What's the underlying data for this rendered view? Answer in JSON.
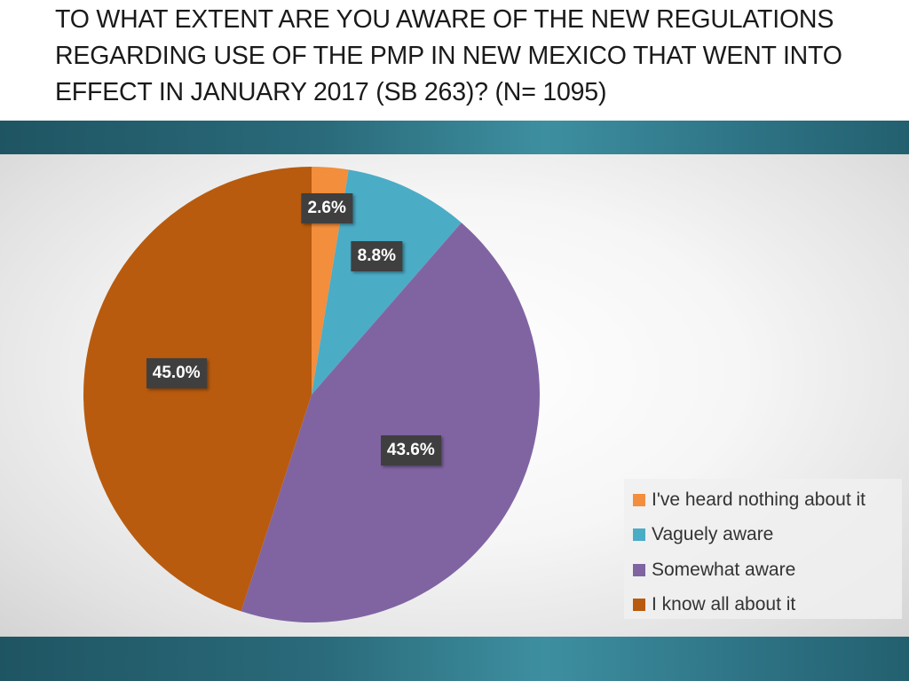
{
  "slide": {
    "title": "TO WHAT EXTENT ARE YOU AWARE OF THE NEW REGULATIONS REGARDING USE OF THE PMP IN NEW MEXICO THAT WENT INTO EFFECT IN JANUARY 2017 (SB 263)? (N= 1095)"
  },
  "chart_data": {
    "type": "pie",
    "title": "TO WHAT EXTENT ARE YOU AWARE OF THE NEW REGULATIONS REGARDING USE OF THE PMP IN NEW MEXICO THAT WENT INTO EFFECT IN JANUARY 2017 (SB 263)? (N= 1095)",
    "categories": [
      "I've heard nothing about it",
      "Vaguely aware",
      "Somewhat aware",
      "I know all about it"
    ],
    "values": [
      2.6,
      8.8,
      43.6,
      45.0
    ],
    "labels": [
      "2.6%",
      "8.8%",
      "43.6%",
      "45.0%"
    ],
    "colors": [
      "#f28e3c",
      "#4bacc6",
      "#8064a2",
      "#b85b0e"
    ],
    "legend_position": "right",
    "start_angle": "12 o'clock, clockwise"
  }
}
